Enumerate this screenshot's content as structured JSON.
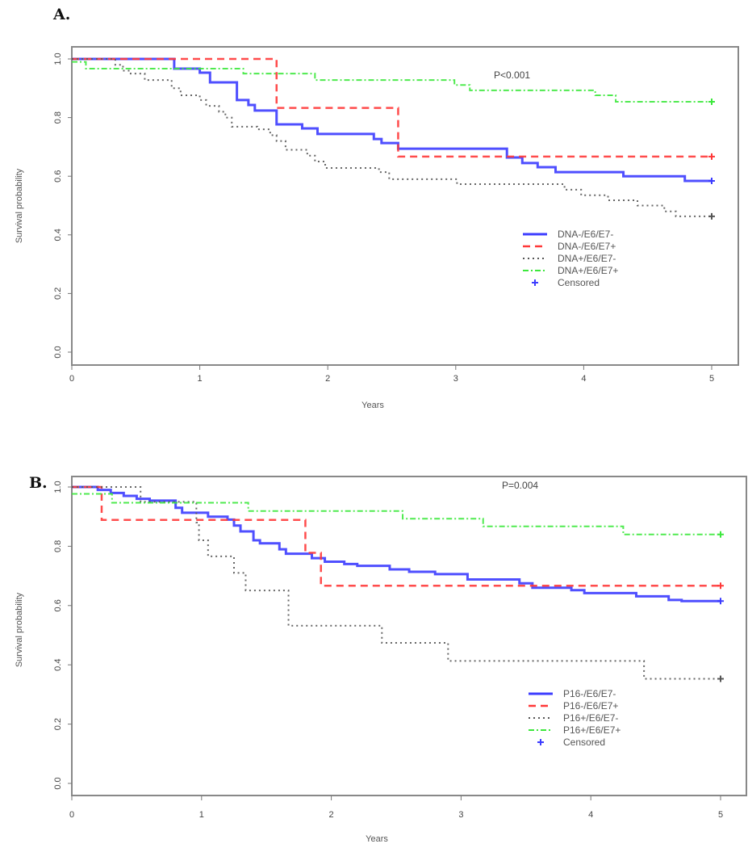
{
  "chart_data": [
    {
      "type": "line",
      "panel_label": "A.",
      "title": "",
      "xlabel": "Years",
      "ylabel": "Survival probability",
      "xlim": [
        0,
        5
      ],
      "ylim": [
        0,
        1
      ],
      "xticks": [
        "0",
        "1",
        "2",
        "3",
        "4",
        "5"
      ],
      "yticks": [
        "0.0",
        "0.2",
        "0.4",
        "0.6",
        "0.8",
        "1.0"
      ],
      "annotation": "P<0.001",
      "legend_position": "center-right",
      "censored_label": "Censored",
      "series": [
        {
          "name": "DNA-/E6/E7-",
          "color": "#3c3cff",
          "style": "solid",
          "steps": [
            [
              0,
              1.0
            ],
            [
              0.8,
              0.967
            ],
            [
              1.0,
              0.953
            ],
            [
              1.08,
              0.92
            ],
            [
              1.29,
              0.86
            ],
            [
              1.38,
              0.843
            ],
            [
              1.43,
              0.824
            ],
            [
              1.6,
              0.777
            ],
            [
              1.8,
              0.763
            ],
            [
              1.92,
              0.744
            ],
            [
              2.36,
              0.727
            ],
            [
              2.42,
              0.713
            ],
            [
              2.55,
              0.694
            ],
            [
              3.4,
              0.664
            ],
            [
              3.52,
              0.645
            ],
            [
              3.64,
              0.631
            ],
            [
              3.78,
              0.614
            ],
            [
              4.31,
              0.6
            ],
            [
              4.79,
              0.584
            ],
            [
              5,
              0.584
            ]
          ]
        },
        {
          "name": "DNA-/E6/E7+",
          "color": "#ff3838",
          "style": "dashed",
          "steps": [
            [
              0,
              1.0
            ],
            [
              1.6,
              0.833
            ],
            [
              2.55,
              0.667
            ],
            [
              5,
              0.667
            ]
          ]
        },
        {
          "name": "DNA+/E6/E7-",
          "color": "#555555",
          "style": "dotted",
          "steps": [
            [
              0,
              1.0
            ],
            [
              0.34,
              0.98
            ],
            [
              0.4,
              0.96
            ],
            [
              0.46,
              0.95
            ],
            [
              0.57,
              0.928
            ],
            [
              0.78,
              0.9
            ],
            [
              0.85,
              0.876
            ],
            [
              1.0,
              0.86
            ],
            [
              1.05,
              0.84
            ],
            [
              1.15,
              0.82
            ],
            [
              1.2,
              0.8
            ],
            [
              1.25,
              0.769
            ],
            [
              1.45,
              0.76
            ],
            [
              1.55,
              0.74
            ],
            [
              1.6,
              0.72
            ],
            [
              1.67,
              0.69
            ],
            [
              1.84,
              0.67
            ],
            [
              1.9,
              0.65
            ],
            [
              1.98,
              0.628
            ],
            [
              2.4,
              0.614
            ],
            [
              2.48,
              0.59
            ],
            [
              3.01,
              0.573
            ],
            [
              3.85,
              0.554
            ],
            [
              3.98,
              0.535
            ],
            [
              4.19,
              0.518
            ],
            [
              4.42,
              0.5
            ],
            [
              4.63,
              0.48
            ],
            [
              4.72,
              0.463
            ],
            [
              5,
              0.463
            ]
          ]
        },
        {
          "name": "DNA+/E6/E7+",
          "color": "#3ce83c",
          "style": "dotdash",
          "steps": [
            [
              0,
              0.99
            ],
            [
              0.11,
              0.967
            ],
            [
              1.34,
              0.95
            ],
            [
              1.9,
              0.928
            ],
            [
              2.99,
              0.911
            ],
            [
              3.11,
              0.893
            ],
            [
              4.09,
              0.876
            ],
            [
              4.25,
              0.854
            ],
            [
              5,
              0.854
            ]
          ]
        }
      ]
    },
    {
      "type": "line",
      "panel_label": "B.",
      "title": "",
      "xlabel": "Years",
      "ylabel": "Survival probability",
      "xlim": [
        0,
        5
      ],
      "ylim": [
        0,
        1
      ],
      "xticks": [
        "0",
        "1",
        "2",
        "3",
        "4",
        "5"
      ],
      "yticks": [
        "0.0",
        "0.2",
        "0.4",
        "0.6",
        "0.8",
        "1.0"
      ],
      "annotation": "P=0.004",
      "legend_position": "bottom-right",
      "censored_label": "Censored",
      "series": [
        {
          "name": "P16-/E6/E7-",
          "color": "#3c3cff",
          "style": "solid",
          "steps": [
            [
              0,
              1.0
            ],
            [
              0.2,
              0.99
            ],
            [
              0.3,
              0.98
            ],
            [
              0.4,
              0.97
            ],
            [
              0.5,
              0.96
            ],
            [
              0.6,
              0.954
            ],
            [
              0.8,
              0.93
            ],
            [
              0.85,
              0.913
            ],
            [
              1.05,
              0.9
            ],
            [
              1.2,
              0.89
            ],
            [
              1.25,
              0.87
            ],
            [
              1.3,
              0.85
            ],
            [
              1.4,
              0.82
            ],
            [
              1.45,
              0.81
            ],
            [
              1.6,
              0.79
            ],
            [
              1.65,
              0.775
            ],
            [
              1.85,
              0.76
            ],
            [
              1.95,
              0.748
            ],
            [
              2.1,
              0.74
            ],
            [
              2.2,
              0.734
            ],
            [
              2.45,
              0.722
            ],
            [
              2.6,
              0.714
            ],
            [
              2.8,
              0.706
            ],
            [
              3.05,
              0.688
            ],
            [
              3.45,
              0.675
            ],
            [
              3.55,
              0.66
            ],
            [
              3.85,
              0.652
            ],
            [
              3.95,
              0.642
            ],
            [
              4.35,
              0.631
            ],
            [
              4.6,
              0.619
            ],
            [
              4.7,
              0.615
            ],
            [
              5,
              0.615
            ]
          ]
        },
        {
          "name": "P16-/E6/E7+",
          "color": "#ff3838",
          "style": "dashed",
          "steps": [
            [
              0,
              1.0
            ],
            [
              0.23,
              0.889
            ],
            [
              1.8,
              0.778
            ],
            [
              1.92,
              0.667
            ],
            [
              5,
              0.667
            ]
          ]
        },
        {
          "name": "P16+/E6/E7-",
          "color": "#555555",
          "style": "dotted",
          "steps": [
            [
              0,
              1.0
            ],
            [
              0.53,
              0.95
            ],
            [
              0.96,
              0.88
            ],
            [
              0.98,
              0.82
            ],
            [
              1.05,
              0.766
            ],
            [
              1.25,
              0.71
            ],
            [
              1.34,
              0.651
            ],
            [
              1.67,
              0.532
            ],
            [
              2.39,
              0.474
            ],
            [
              2.9,
              0.413
            ],
            [
              4.41,
              0.353
            ],
            [
              5,
              0.353
            ]
          ]
        },
        {
          "name": "P16+/E6/E7+",
          "color": "#3ce83c",
          "style": "dotdash",
          "steps": [
            [
              0,
              0.977
            ],
            [
              0.31,
              0.947
            ],
            [
              1.36,
              0.919
            ],
            [
              2.55,
              0.893
            ],
            [
              3.17,
              0.867
            ],
            [
              4.25,
              0.84
            ],
            [
              5,
              0.84
            ]
          ]
        }
      ]
    }
  ]
}
